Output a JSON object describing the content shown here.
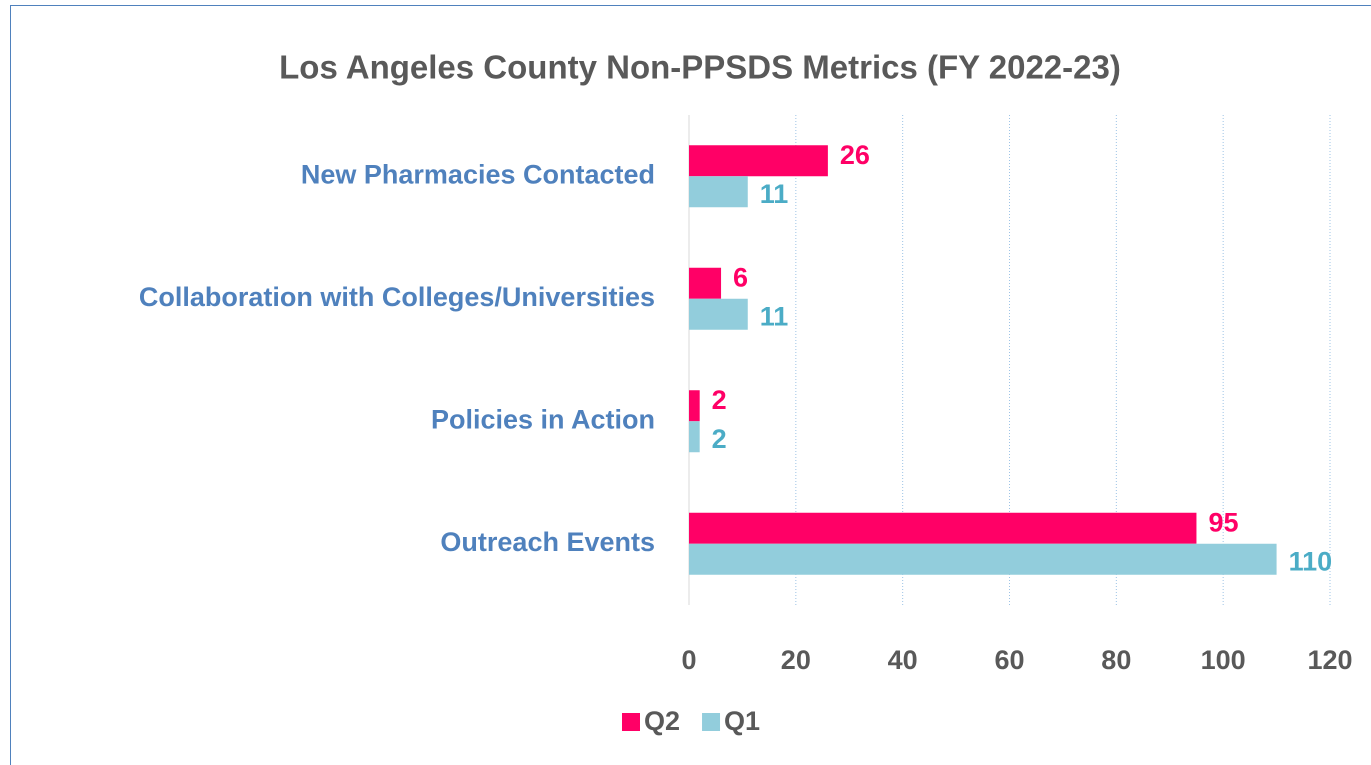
{
  "chart_data": {
    "type": "bar",
    "orientation": "horizontal",
    "title": "Los Angeles County Non-PPSDS Metrics (FY 2022-23)",
    "categories": [
      "New Pharmacies Contacted",
      "Collaboration with Colleges/Universities",
      "Policies in Action",
      "Outreach Events"
    ],
    "series": [
      {
        "name": "Q2",
        "color": "#ff0066",
        "label_color": "#ff0066",
        "values": [
          26,
          6,
          2,
          95
        ]
      },
      {
        "name": "Q1",
        "color": "#92cddc",
        "label_color": "#4bacc6",
        "values": [
          11,
          11,
          2,
          110
        ]
      }
    ],
    "xlim": [
      0,
      120
    ],
    "xticks": [
      0,
      20,
      40,
      60,
      80,
      100,
      120
    ],
    "grid": true,
    "legend": "bottom"
  }
}
